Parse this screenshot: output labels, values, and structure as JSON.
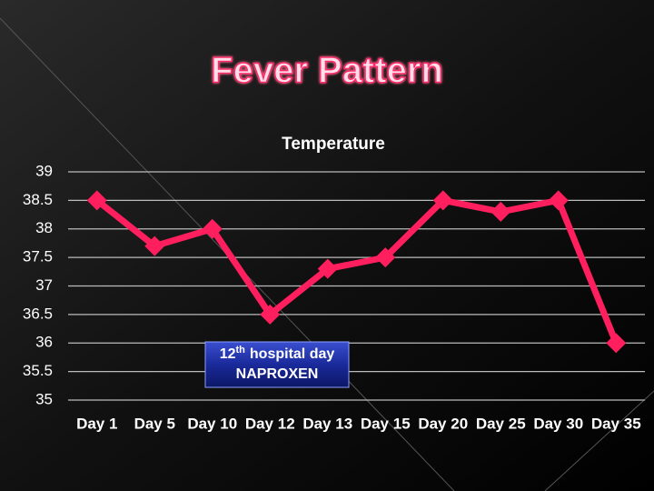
{
  "slide_title": "Fever Pattern",
  "chart_data": {
    "type": "line",
    "title": "Temperature",
    "categories": [
      "Day 1",
      "Day 5",
      "Day 10",
      "Day 12",
      "Day 13",
      "Day 15",
      "Day 20",
      "Day 25",
      "Day 30",
      "Day 35"
    ],
    "values": [
      38.5,
      37.7,
      38.0,
      36.5,
      37.3,
      37.5,
      38.5,
      38.3,
      38.5,
      36.0
    ],
    "color": "#ff1f5e",
    "ylim": [
      35,
      39
    ],
    "yticks": [
      35,
      35.5,
      36,
      36.5,
      37,
      37.5,
      38,
      38.5,
      39
    ],
    "grid": true,
    "annotation": {
      "ordinal": "12",
      "suffix": "th",
      "text": "hospital day",
      "drug": "NAPROXEN"
    }
  }
}
